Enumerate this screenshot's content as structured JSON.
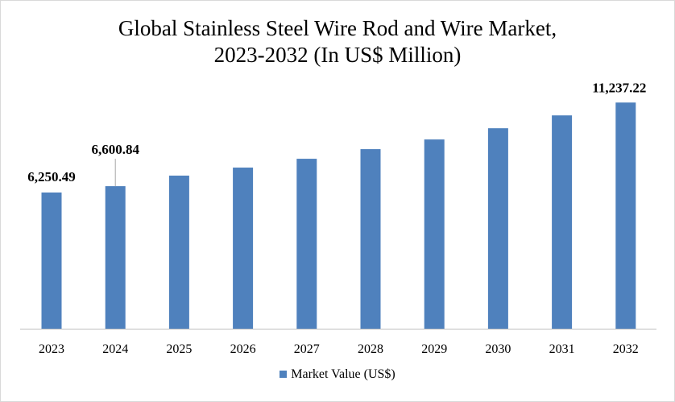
{
  "chart_data": {
    "type": "bar",
    "title_line1": "Global Stainless Steel Wire Rod and Wire Market,",
    "title_line2": "2023-2032 (In US$ Million)",
    "categories": [
      "2023",
      "2024",
      "2025",
      "2026",
      "2027",
      "2028",
      "2029",
      "2030",
      "2031",
      "2032"
    ],
    "series": [
      {
        "name": "Market Value (US$)",
        "values": [
          6250.49,
          6600.84,
          7186,
          7631,
          8120,
          8655,
          9190,
          9813,
          10525,
          11237.22
        ],
        "color": "#4f81bd"
      }
    ],
    "data_labels": [
      {
        "category": "2023",
        "text": "6,250.49"
      },
      {
        "category": "2024",
        "text": "6,600.84"
      },
      {
        "category": "2032",
        "text": "11,237.22"
      }
    ],
    "xlabel": "",
    "ylabel": "",
    "ylim": [
      -1300,
      12500
    ],
    "y_axis_visible": false,
    "grid": false,
    "legend": "bottom"
  }
}
